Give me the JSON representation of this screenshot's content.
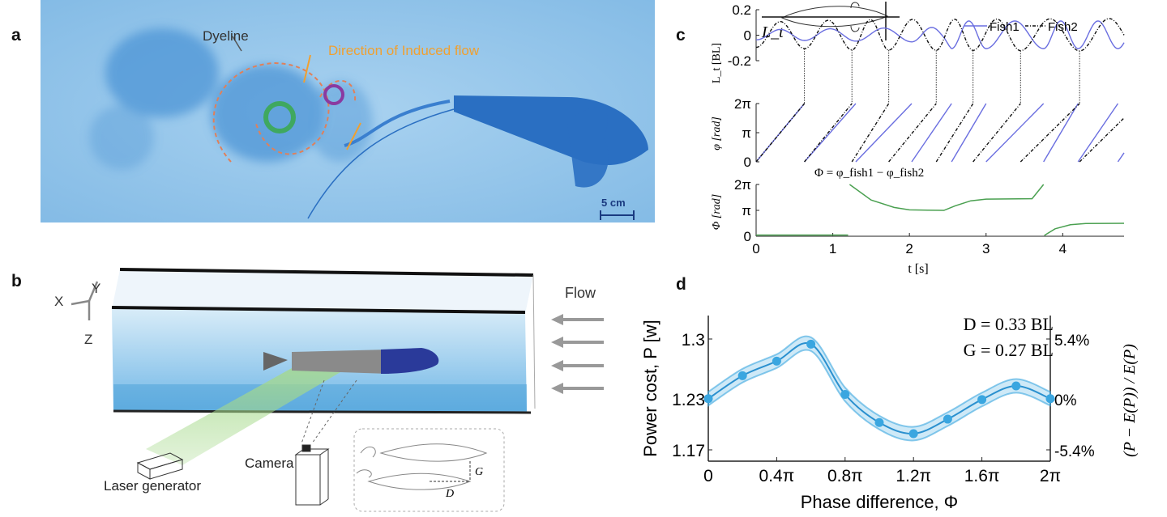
{
  "panels": {
    "a": "a",
    "b": "b",
    "c": "c",
    "d": "d"
  },
  "panel_a": {
    "dyeline": "Dyeline",
    "flow_direction": "Direction of Induced flow",
    "scale_bar": "5 cm",
    "colors": {
      "water": "#8fc3e8",
      "dye": "#3b86d0",
      "annotation": "#f0a030",
      "vortex_left": "#3fa860",
      "vortex_right": "#8a3aa0"
    }
  },
  "panel_b": {
    "axis_x": "X",
    "axis_y": "Y",
    "axis_z": "Z",
    "flow": "Flow",
    "camera": "Camera",
    "laser": "Laser generator",
    "inset_g": "G",
    "inset_d": "D"
  },
  "chart_data": [
    {
      "type": "line",
      "panel": "c",
      "legend": [
        "Fish1",
        "Fish2"
      ],
      "legend_placement": "top-right",
      "colors": {
        "Fish1": "#6a6ee0",
        "Fish2": "#111111",
        "Phi": "#4aa050"
      },
      "xlabel": "t  [s]",
      "xlim": [
        0,
        4.8
      ],
      "xticks": [
        "0",
        "1",
        "2",
        "3",
        "4"
      ],
      "subplots": [
        {
          "ylabel": "L_t [BL]",
          "ylim": [
            -0.2,
            0.2
          ],
          "yticks": [
            "0.2",
            "0",
            "-0.2"
          ],
          "inset_label": "L_t"
        },
        {
          "ylabel": "φ [rad]",
          "ylim": [
            0,
            6.283
          ],
          "yticks": [
            "2π",
            "π",
            "0"
          ]
        },
        {
          "ylabel": "Φ [rad]",
          "ylim": [
            0,
            6.283
          ],
          "yticks": [
            "2π",
            "π",
            "0"
          ],
          "formula": "Φ = φ_fish1 − φ_fish2"
        }
      ],
      "series": [
        {
          "name": "Fish1",
          "style": "solid",
          "cycle_starts_s": [
            0,
            0.63,
            1.3,
            2.03,
            2.55,
            3.0,
            3.75,
            4.2,
            4.72
          ],
          "amplitude_bl": [
            [
              0,
              0.04
            ],
            [
              2.45,
              0.06
            ],
            [
              2.55,
              0.11
            ],
            [
              4.8,
              0.11
            ]
          ]
        },
        {
          "name": "Fish2",
          "style": "dashdot",
          "cycle_starts_s": [
            0,
            0.63,
            1.25,
            1.73,
            2.35,
            2.83,
            3.45,
            4.22
          ],
          "amplitude_bl": [
            [
              0,
              0.1
            ],
            [
              1.2,
              0.12
            ],
            [
              4.8,
              0.13
            ]
          ]
        }
      ],
      "phase_difference": [
        [
          [
            0,
            0.15
          ],
          [
            1.2,
            0.15
          ]
        ],
        [
          [
            1.22,
            6.28
          ],
          [
            1.5,
            4.4
          ],
          [
            1.8,
            3.5
          ],
          [
            2.0,
            3.2
          ],
          [
            2.45,
            3.14
          ],
          [
            2.6,
            3.7
          ],
          [
            2.8,
            4.3
          ],
          [
            3.0,
            4.5
          ],
          [
            3.6,
            4.55
          ],
          [
            3.75,
            6.28
          ]
        ],
        [
          [
            3.76,
            0.1
          ],
          [
            3.9,
            0.9
          ],
          [
            4.1,
            1.4
          ],
          [
            4.3,
            1.55
          ],
          [
            4.8,
            1.57
          ]
        ]
      ]
    },
    {
      "type": "line",
      "panel": "d",
      "xlabel": "Phase difference, Φ",
      "ylabel": "Power cost, P  [w]",
      "ylabel_right": "(P − E(P)) / E(P)",
      "xlim": [
        0,
        6.2832
      ],
      "ylim": [
        1.16,
        1.32
      ],
      "xticks": [
        "0",
        "0.4π",
        "0.8π",
        "1.2π",
        "1.6π",
        "2π"
      ],
      "yticks": [
        "1.3",
        "1.23",
        "1.17"
      ],
      "yticks_right": [
        "5.4%",
        "0%",
        "-5.4%"
      ],
      "annotations": [
        "D = 0.33 BL",
        "G = 0.27 BL"
      ],
      "color": "#3aa6e0",
      "x_pi": [
        0,
        0.2,
        0.4,
        0.6,
        0.8,
        1.0,
        1.2,
        1.4,
        1.6,
        1.8,
        2.0
      ],
      "values": [
        1.23,
        1.257,
        1.274,
        1.294,
        1.235,
        1.202,
        1.189,
        1.206,
        1.229,
        1.245,
        1.23
      ],
      "band": 0.008
    }
  ]
}
